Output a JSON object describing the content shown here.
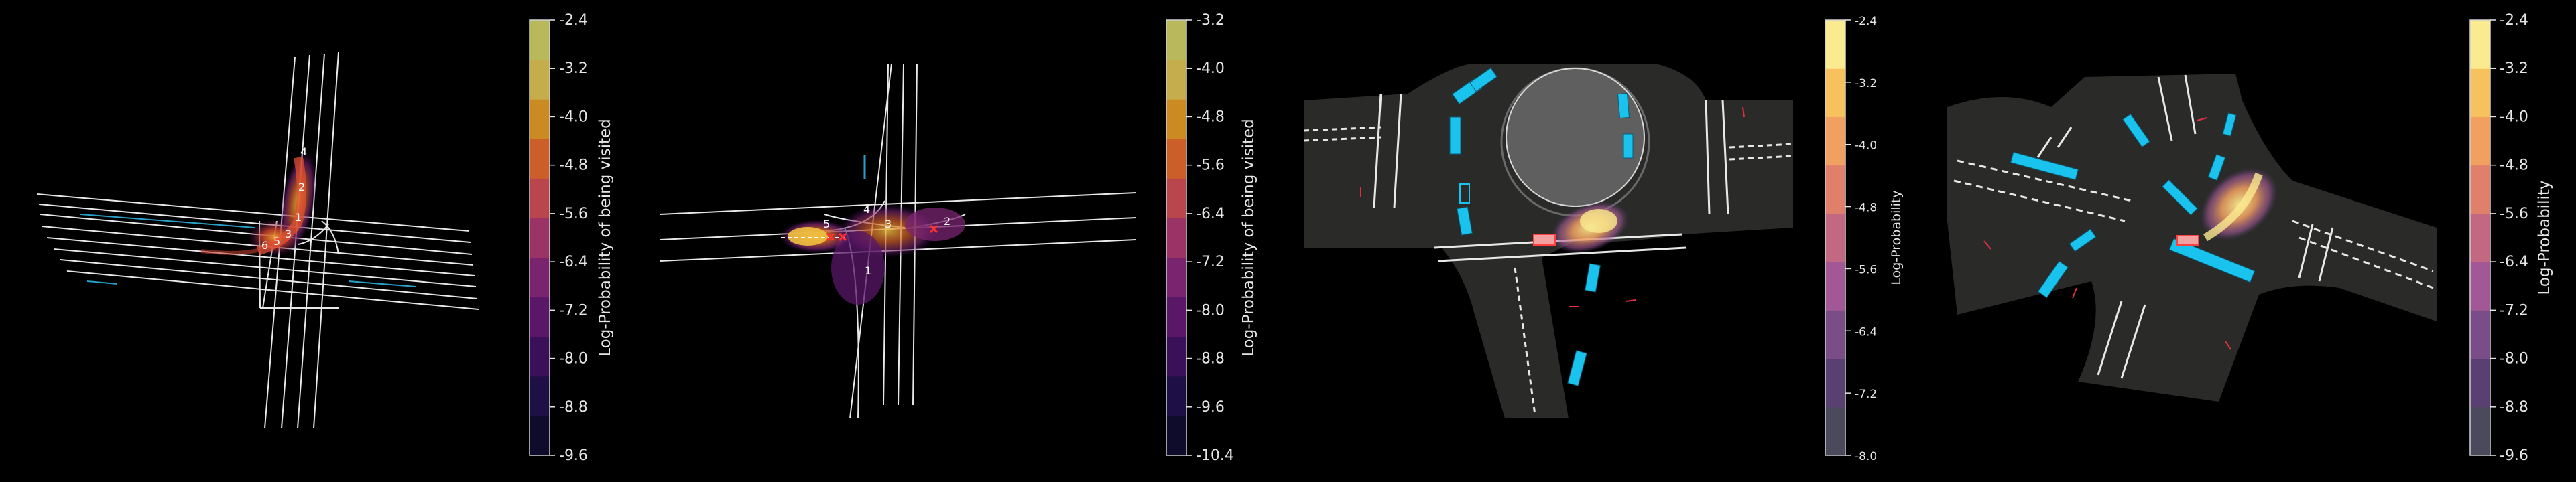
{
  "chart_data": [
    {
      "type": "heatmap",
      "title": "",
      "colorbar": {
        "label": "Log-Probability of being visited",
        "ticks": [
          "-2.4",
          "-3.2",
          "-4.0",
          "-4.8",
          "-5.6",
          "-6.4",
          "-7.2",
          "-8.0",
          "-8.8",
          "-9.6"
        ],
        "range": [
          -9.6,
          -2.4
        ],
        "colors": [
          "#0f0b2b",
          "#1e0f46",
          "#3a1059",
          "#5a1768",
          "#7a2470",
          "#9c3367",
          "#b9454d",
          "#cc5f29",
          "#cb8a22",
          "#c4ad4a",
          "#b9b85b"
        ]
      },
      "waypoint_labels": [
        "4",
        "2",
        "1",
        "3",
        "5",
        "6"
      ]
    },
    {
      "type": "heatmap",
      "title": "",
      "colorbar": {
        "label": "Log-Probability of being visited",
        "ticks": [
          "-3.2",
          "-4.0",
          "-4.8",
          "-5.6",
          "-6.4",
          "-7.2",
          "-8.0",
          "-8.8",
          "-9.6",
          "-10.4"
        ],
        "range": [
          -10.4,
          -3.2
        ],
        "colors": [
          "#0f0b2b",
          "#1e0f46",
          "#3a1059",
          "#5a1768",
          "#7a2470",
          "#9c3367",
          "#b9454d",
          "#cc5f29",
          "#cb8a22",
          "#c4ad4a",
          "#b9b85b"
        ]
      },
      "waypoint_labels": [
        "5",
        "4",
        "3",
        "2",
        "1"
      ]
    },
    {
      "type": "heatmap",
      "title": "",
      "colorbar": {
        "label": "Log-Probability",
        "ticks": [
          "-2.4",
          "-3.2",
          "-4.0",
          "-4.8",
          "-5.6",
          "-6.4",
          "-7.2",
          "-8.0"
        ],
        "range": [
          -8.0,
          -2.4
        ],
        "colors": [
          "#4a4a5c",
          "#5a3f73",
          "#7a4c88",
          "#a25896",
          "#c26882",
          "#e07f6a",
          "#f2a060",
          "#f7c15e",
          "#faea90"
        ]
      }
    },
    {
      "type": "heatmap",
      "title": "",
      "colorbar": {
        "label": "Log-Probability",
        "ticks": [
          "-2.4",
          "-3.2",
          "-4.0",
          "-4.8",
          "-5.6",
          "-6.4",
          "-7.2",
          "-8.0",
          "-8.8",
          "-9.6"
        ],
        "range": [
          -9.6,
          -2.4
        ],
        "colors": [
          "#4a4a5c",
          "#5a3f73",
          "#7a4c88",
          "#a25896",
          "#c26882",
          "#e07f6a",
          "#f2a060",
          "#f7c15e",
          "#faea90"
        ]
      }
    }
  ]
}
